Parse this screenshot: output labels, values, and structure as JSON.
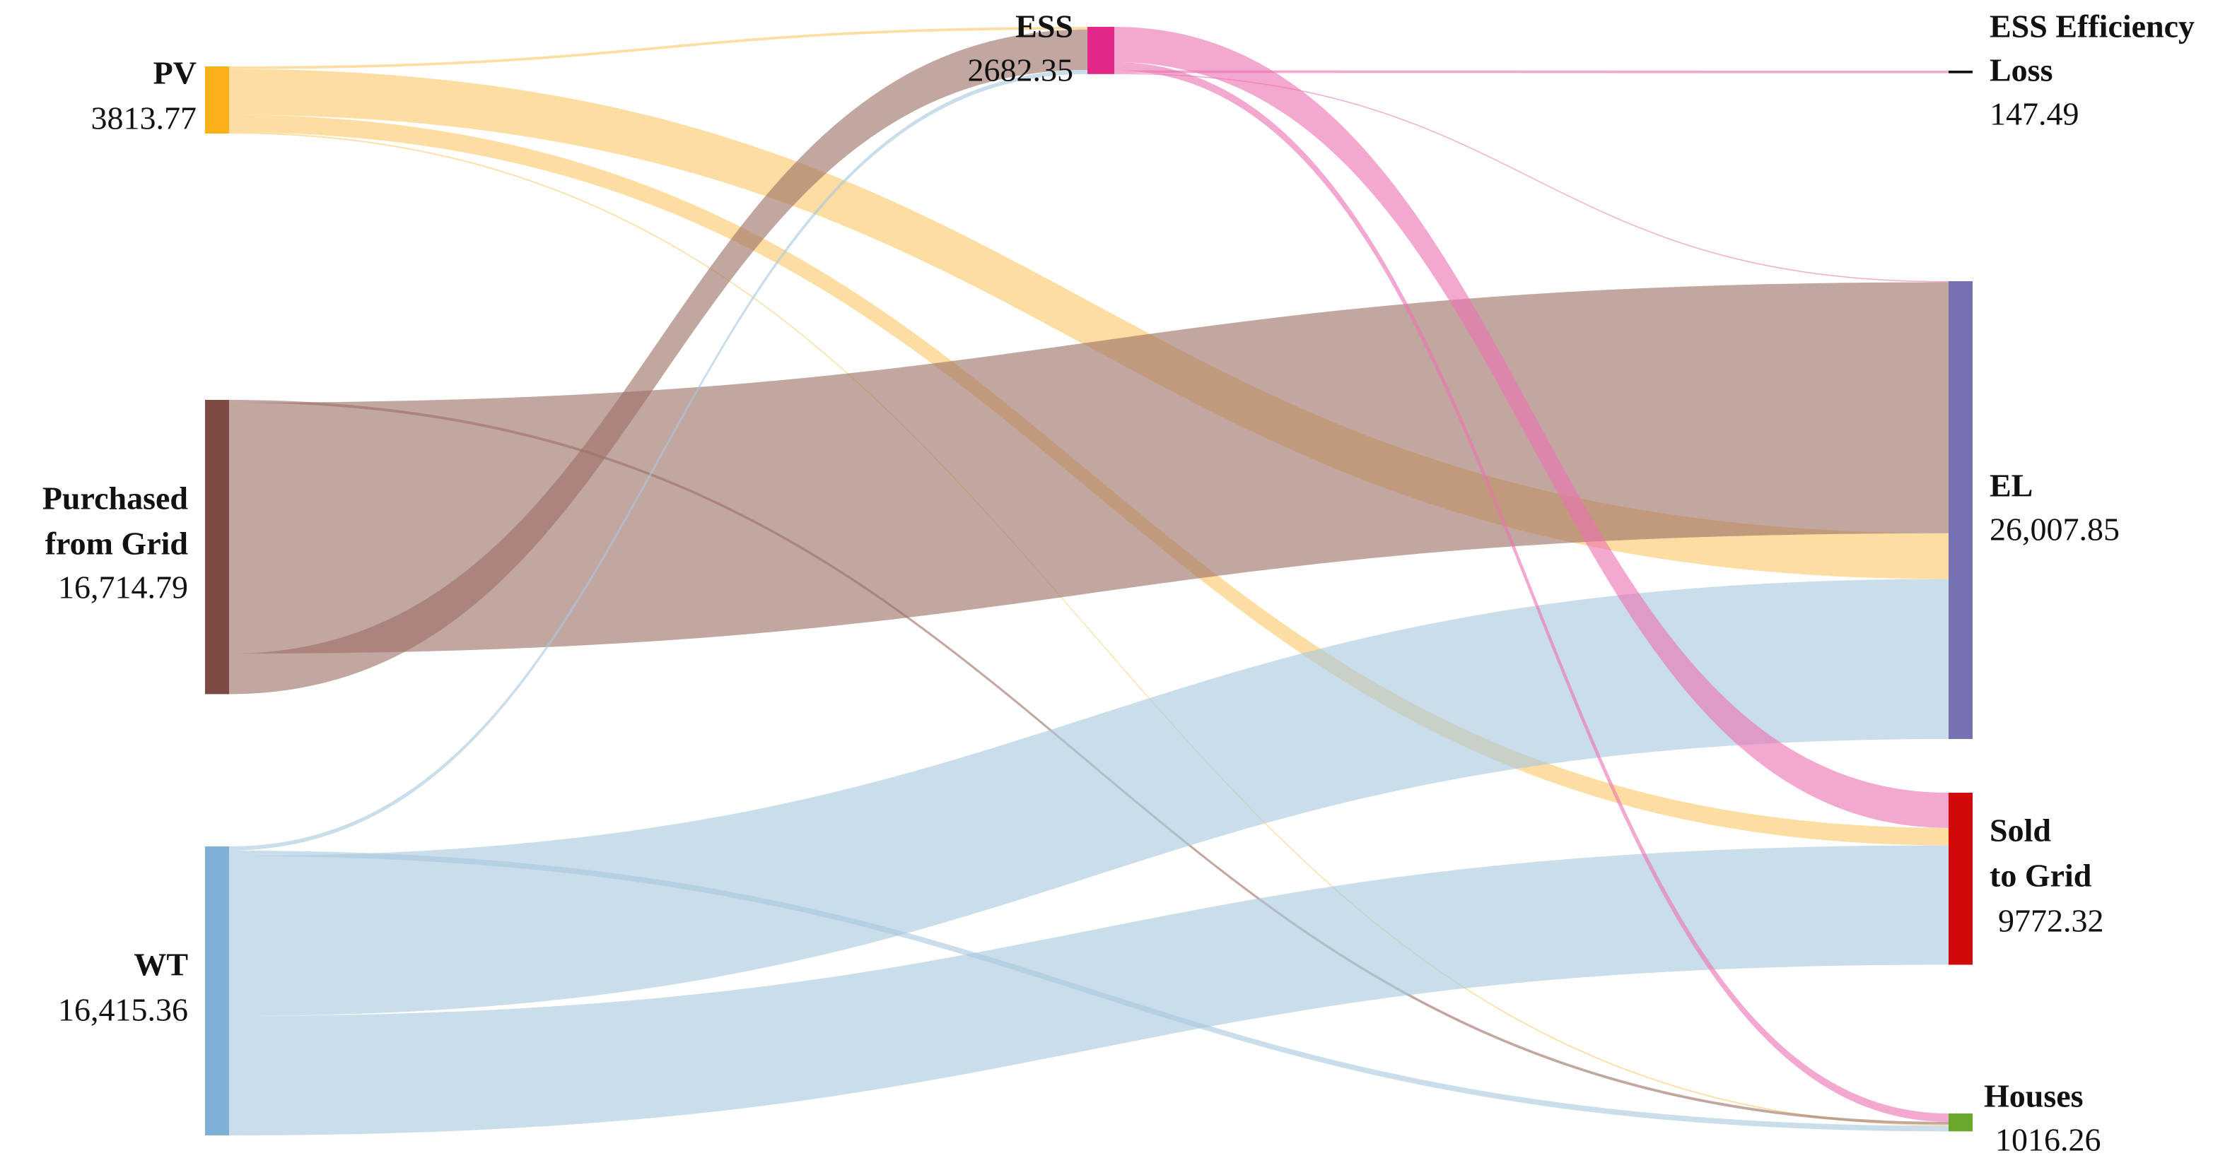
{
  "chart_data": {
    "type": "sankey",
    "nodes": [
      {
        "name": [
          "PV"
        ],
        "value": 3813.77,
        "color": "#fbb21a",
        "link_color": "#fcc867"
      },
      {
        "name": [
          "Purchased",
          "from Grid"
        ],
        "value": 16714.79,
        "color": "#7d4b43",
        "link_color": "#9c7168"
      },
      {
        "name": [
          "WT"
        ],
        "value": 16415.36,
        "color": "#7fb1d6",
        "link_color": "#a9c8de"
      },
      {
        "name": [
          "ESS"
        ],
        "value": 2682.35,
        "color": "#e3288a",
        "link_color": "#ec72b2"
      },
      {
        "name": [
          "ESS Efficiency",
          "Loss"
        ],
        "value": 147.49,
        "color": "#111111"
      },
      {
        "name": [
          "EL"
        ],
        "value": 26007.85,
        "color": "#7571b3"
      },
      {
        "name": [
          "Sold",
          "to Grid"
        ],
        "value": 9772.32,
        "color": "#d00a0a"
      },
      {
        "name": [
          "Houses"
        ],
        "value": 1016.26,
        "color": "#6ba72a"
      }
    ],
    "value_labels": [
      "3813.77",
      "16,714.79",
      "16,415.36",
      "2682.35",
      "147.49",
      "26,007.85",
      "9772.32",
      "1016.26"
    ],
    "links": [
      {
        "source": 0,
        "target": 3,
        "value": 150
      },
      {
        "source": 0,
        "target": 5,
        "value": 2600
      },
      {
        "source": 0,
        "target": 6,
        "value": 990
      },
      {
        "source": 0,
        "target": 7,
        "value": 73.77
      },
      {
        "source": 1,
        "target": 3,
        "value": 2300
      },
      {
        "source": 1,
        "target": 5,
        "value": 14260
      },
      {
        "source": 1,
        "target": 7,
        "value": 154.79
      },
      {
        "source": 2,
        "target": 3,
        "value": 232.35
      },
      {
        "source": 2,
        "target": 5,
        "value": 9087.85
      },
      {
        "source": 2,
        "target": 6,
        "value": 6782.32
      },
      {
        "source": 2,
        "target": 7,
        "value": 312.84
      },
      {
        "source": 3,
        "target": 4,
        "value": 147.49
      },
      {
        "source": 3,
        "target": 5,
        "value": 60
      },
      {
        "source": 3,
        "target": 6,
        "value": 2000
      },
      {
        "source": 3,
        "target": 7,
        "value": 474.86
      }
    ]
  }
}
